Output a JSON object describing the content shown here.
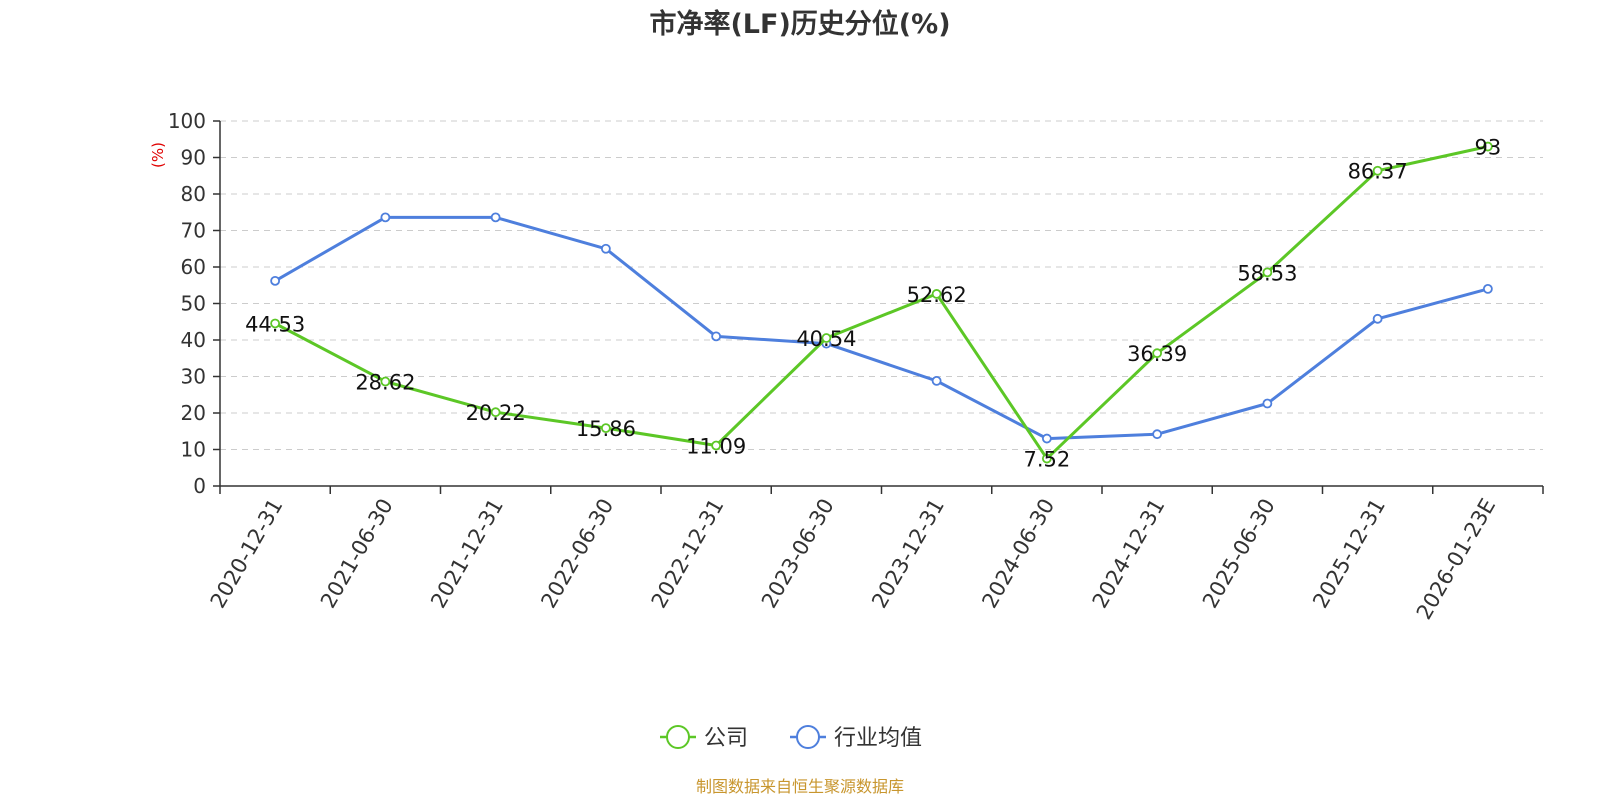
{
  "chart_data": {
    "type": "line",
    "title": "市净率(LF)历史分位(%)",
    "ylabel": "(%)",
    "ylim": [
      0,
      100
    ],
    "yticks": [
      0,
      10,
      20,
      30,
      40,
      50,
      60,
      70,
      80,
      90,
      100
    ],
    "grid": true,
    "legend_position": "bottom",
    "categories": [
      "2020-12-31",
      "2021-06-30",
      "2021-12-31",
      "2022-06-30",
      "2022-12-31",
      "2023-06-30",
      "2023-12-31",
      "2024-06-30",
      "2024-12-31",
      "2025-06-30",
      "2025-12-31",
      "2026-01-23E"
    ],
    "series": [
      {
        "name": "公司",
        "color": "#5cc726",
        "values": [
          44.53,
          28.62,
          20.22,
          15.86,
          11.09,
          40.54,
          52.62,
          7.52,
          36.39,
          58.53,
          86.37,
          93
        ],
        "labels": [
          "44.53",
          "28.62",
          "20.22",
          "15.86",
          "11.09",
          "40.54",
          "52.62",
          "7.52",
          "36.39",
          "58.53",
          "86.37",
          "93"
        ],
        "show_labels": true
      },
      {
        "name": "行业均值",
        "color": "#4e7fdd",
        "values": [
          56.2,
          73.6,
          73.6,
          65.0,
          41.0,
          39.0,
          28.8,
          13.0,
          14.2,
          22.6,
          45.8,
          54.0
        ],
        "show_labels": false
      }
    ],
    "source_note": "制图数据来自恒生聚源数据库"
  }
}
